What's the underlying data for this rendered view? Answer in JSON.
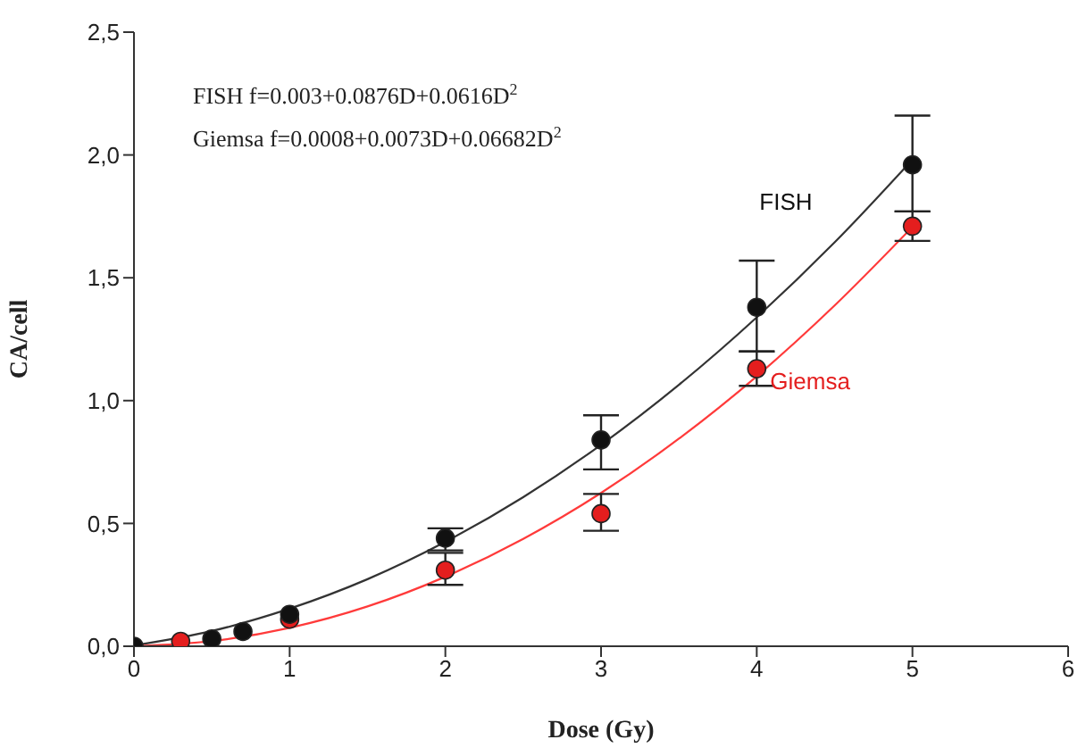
{
  "chart_data": {
    "type": "scatter",
    "xlabel": "Dose (Gy)",
    "ylabel": "CA/cell",
    "annotations": [
      "FISH f=0.003+0.0876D+0.0616D$^{2}$",
      "Giemsa f=0.0008+0.0073D+0.06682D$^{2}$"
    ],
    "xlim": [
      0,
      6
    ],
    "xticks": [
      0,
      1,
      2,
      3,
      4,
      5,
      6
    ],
    "ylim": [
      0,
      2.5
    ],
    "yticks": [
      {
        "value": 0,
        "label": "0,0"
      },
      {
        "value": 0.5,
        "label": "0,5"
      },
      {
        "value": 1,
        "label": "1,0"
      },
      {
        "value": 1.5,
        "label": "1,5"
      },
      {
        "value": 2,
        "label": "2,0"
      },
      {
        "value": 2.5,
        "label": "2,5"
      }
    ],
    "grid": false,
    "legend": false,
    "series": [
      {
        "name": "FISH",
        "marker": "circle",
        "color": "#111111",
        "x": [
          0,
          0.5,
          0.7,
          1,
          2,
          3,
          4,
          5
        ],
        "values": [
          0,
          0.03,
          0.06,
          0.13,
          0.44,
          0.84,
          1.38,
          1.96
        ],
        "errors": [
          null,
          null,
          null,
          null,
          [
            0.39,
            0.48
          ],
          [
            0.72,
            0.94
          ],
          [
            1.2,
            1.57
          ],
          [
            1.77,
            2.16
          ]
        ]
      },
      {
        "name": "Giemsa",
        "marker": "circle",
        "color": "#e41e1e",
        "x": [
          0.3,
          1,
          2,
          3,
          4,
          5
        ],
        "values": [
          0.02,
          0.11,
          0.31,
          0.54,
          1.13,
          1.71
        ],
        "errors": [
          null,
          null,
          [
            0.25,
            0.38
          ],
          [
            0.47,
            0.62
          ],
          [
            1.06,
            1.2
          ],
          [
            1.65,
            1.77
          ]
        ]
      },
      {
        "type": "line",
        "marker": "none",
        "color": "#333333",
        "line_style": "solid",
        "x": [
          0,
          0.5,
          1,
          1.5,
          2,
          2.5,
          3,
          3.5,
          4,
          4.5,
          5
        ],
        "values": [
          0.003,
          0.062,
          0.153,
          0.273,
          0.425,
          0.607,
          0.82,
          1.064,
          1.339,
          1.644,
          1.981
        ]
      },
      {
        "type": "line",
        "marker": "none",
        "color": "#ff3a3a",
        "line_style": "solid",
        "x": [
          0,
          0.5,
          1,
          1.5,
          2,
          2.5,
          3,
          3.5,
          4,
          4.5,
          5
        ],
        "values": [
          0.001,
          0.021,
          0.075,
          0.162,
          0.283,
          0.437,
          0.624,
          0.845,
          1.099,
          1.387,
          1.707
        ]
      }
    ]
  }
}
